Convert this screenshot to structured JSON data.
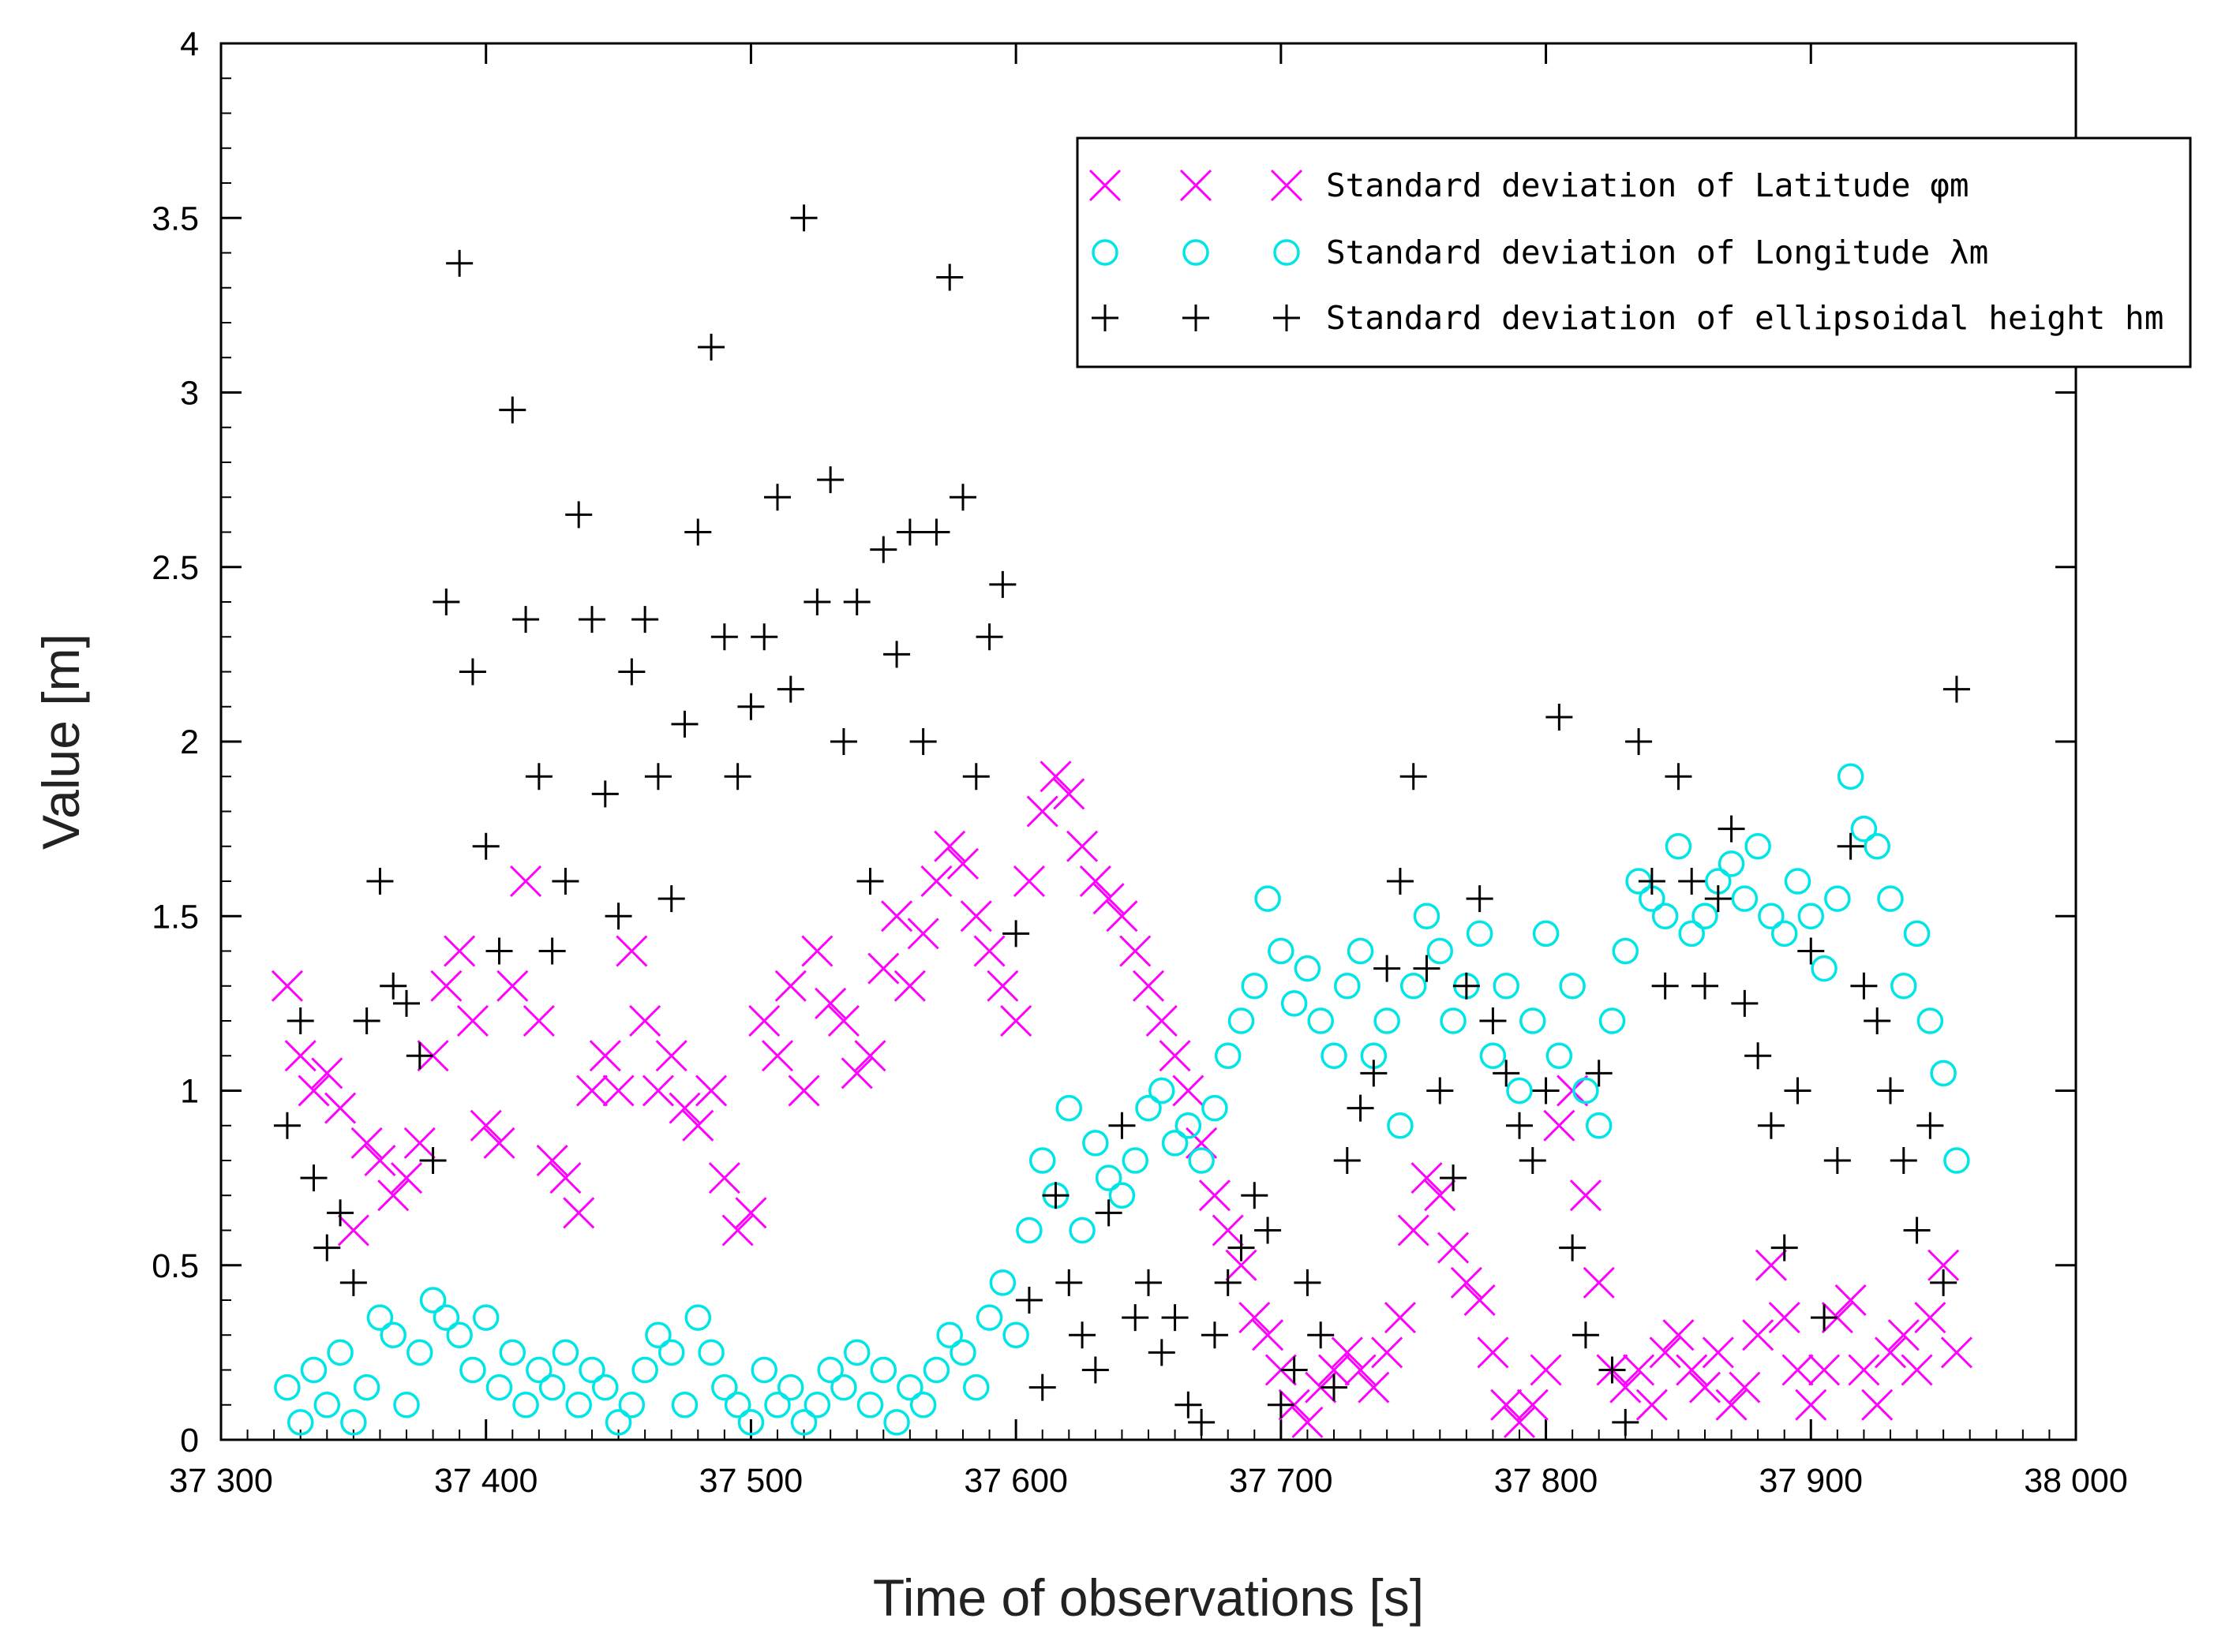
{
  "chart_data": {
    "type": "scatter",
    "title": "",
    "xlabel": "Time of observations [s]",
    "ylabel": "Value [m]",
    "xlim": [
      37300,
      38000
    ],
    "ylim": [
      0,
      4
    ],
    "x_ticks": [
      37300,
      37400,
      37500,
      37600,
      37700,
      37800,
      37900,
      38000
    ],
    "x_tick_labels": [
      "37 300",
      "37 400",
      "37 500",
      "37 600",
      "37 700",
      "37 800",
      "37 900",
      "38 000"
    ],
    "y_ticks": [
      0,
      0.5,
      1,
      1.5,
      2,
      2.5,
      3,
      3.5,
      4
    ],
    "y_tick_labels": [
      "0",
      "0.5",
      "1",
      "1.5",
      "2",
      "2.5",
      "3",
      "3.5",
      "4"
    ],
    "grid": false,
    "legend_position": "top-right",
    "series": [
      {
        "name": "Standard deviation of Latitude φm",
        "marker": "x",
        "color": "#ff00ff",
        "x": [
          37325,
          37330,
          37335,
          37340,
          37345,
          37350,
          37355,
          37360,
          37365,
          37370,
          37375,
          37380,
          37385,
          37390,
          37395,
          37400,
          37405,
          37410,
          37415,
          37420,
          37425,
          37430,
          37435,
          37440,
          37445,
          37450,
          37455,
          37460,
          37465,
          37470,
          37475,
          37480,
          37485,
          37490,
          37495,
          37500,
          37505,
          37510,
          37515,
          37520,
          37525,
          37530,
          37535,
          37540,
          37545,
          37550,
          37555,
          37560,
          37565,
          37570,
          37575,
          37580,
          37585,
          37590,
          37595,
          37600,
          37605,
          37610,
          37615,
          37620,
          37625,
          37630,
          37635,
          37640,
          37645,
          37650,
          37655,
          37660,
          37665,
          37670,
          37675,
          37680,
          37685,
          37690,
          37695,
          37700,
          37705,
          37710,
          37715,
          37720,
          37725,
          37730,
          37735,
          37740,
          37745,
          37750,
          37755,
          37760,
          37765,
          37770,
          37775,
          37780,
          37785,
          37790,
          37795,
          37800,
          37805,
          37810,
          37815,
          37820,
          37825,
          37830,
          37835,
          37840,
          37845,
          37850,
          37855,
          37860,
          37865,
          37870,
          37875,
          37880,
          37885,
          37890,
          37895,
          37900,
          37905,
          37910,
          37915,
          37920,
          37925,
          37930,
          37935,
          37940,
          37945,
          37950,
          37955
        ],
        "y": [
          1.3,
          1.1,
          1.0,
          1.05,
          0.95,
          0.6,
          0.85,
          0.8,
          0.7,
          0.75,
          0.85,
          1.1,
          1.3,
          1.4,
          1.2,
          0.9,
          0.85,
          1.3,
          1.6,
          1.2,
          0.8,
          0.75,
          0.65,
          1.0,
          1.1,
          1.0,
          1.4,
          1.2,
          1.0,
          1.1,
          0.95,
          0.9,
          1.0,
          0.75,
          0.6,
          0.65,
          1.2,
          1.1,
          1.3,
          1.0,
          1.4,
          1.25,
          1.2,
          1.05,
          1.1,
          1.35,
          1.5,
          1.3,
          1.45,
          1.6,
          1.7,
          1.65,
          1.5,
          1.4,
          1.3,
          1.2,
          1.6,
          1.8,
          1.9,
          1.85,
          1.7,
          1.6,
          1.55,
          1.5,
          1.4,
          1.3,
          1.2,
          1.1,
          1.0,
          0.85,
          0.7,
          0.6,
          0.5,
          0.35,
          0.3,
          0.2,
          0.1,
          0.05,
          0.15,
          0.2,
          0.25,
          0.2,
          0.15,
          0.25,
          0.35,
          0.6,
          0.75,
          0.7,
          0.55,
          0.45,
          0.4,
          0.25,
          0.1,
          0.05,
          0.1,
          0.2,
          0.9,
          1.0,
          0.7,
          0.45,
          0.2,
          0.15,
          0.2,
          0.1,
          0.25,
          0.3,
          0.2,
          0.15,
          0.25,
          0.1,
          0.15,
          0.3,
          0.5,
          0.35,
          0.2,
          0.1,
          0.2,
          0.35,
          0.4,
          0.2,
          0.1,
          0.25,
          0.3,
          0.2,
          0.35,
          0.5,
          0.25
        ]
      },
      {
        "name": "Standard deviation of Longitude λm",
        "marker": "o",
        "color": "#00e5e5",
        "x": [
          37325,
          37330,
          37335,
          37340,
          37345,
          37350,
          37355,
          37360,
          37365,
          37370,
          37375,
          37380,
          37385,
          37390,
          37395,
          37400,
          37405,
          37410,
          37415,
          37420,
          37425,
          37430,
          37435,
          37440,
          37445,
          37450,
          37455,
          37460,
          37465,
          37470,
          37475,
          37480,
          37485,
          37490,
          37495,
          37500,
          37505,
          37510,
          37515,
          37520,
          37525,
          37530,
          37535,
          37540,
          37545,
          37550,
          37555,
          37560,
          37565,
          37570,
          37575,
          37580,
          37585,
          37590,
          37595,
          37600,
          37605,
          37610,
          37615,
          37620,
          37625,
          37630,
          37635,
          37640,
          37645,
          37650,
          37655,
          37660,
          37665,
          37670,
          37675,
          37680,
          37685,
          37690,
          37695,
          37700,
          37705,
          37710,
          37715,
          37720,
          37725,
          37730,
          37735,
          37740,
          37745,
          37750,
          37755,
          37760,
          37765,
          37770,
          37775,
          37780,
          37785,
          37790,
          37795,
          37800,
          37805,
          37810,
          37815,
          37820,
          37825,
          37830,
          37835,
          37840,
          37845,
          37850,
          37855,
          37860,
          37865,
          37870,
          37875,
          37880,
          37885,
          37890,
          37895,
          37900,
          37905,
          37910,
          37915,
          37920,
          37925,
          37930,
          37935,
          37940,
          37945,
          37950,
          37955
        ],
        "y": [
          0.15,
          0.05,
          0.2,
          0.1,
          0.25,
          0.05,
          0.15,
          0.35,
          0.3,
          0.1,
          0.25,
          0.4,
          0.35,
          0.3,
          0.2,
          0.35,
          0.15,
          0.25,
          0.1,
          0.2,
          0.15,
          0.25,
          0.1,
          0.2,
          0.15,
          0.05,
          0.1,
          0.2,
          0.3,
          0.25,
          0.1,
          0.35,
          0.25,
          0.15,
          0.1,
          0.05,
          0.2,
          0.1,
          0.15,
          0.05,
          0.1,
          0.2,
          0.15,
          0.25,
          0.1,
          0.2,
          0.05,
          0.15,
          0.1,
          0.2,
          0.3,
          0.25,
          0.15,
          0.35,
          0.45,
          0.3,
          0.6,
          0.8,
          0.7,
          0.95,
          0.6,
          0.85,
          0.75,
          0.7,
          0.8,
          0.95,
          1.0,
          0.85,
          0.9,
          0.8,
          0.95,
          1.1,
          1.2,
          1.3,
          1.55,
          1.4,
          1.25,
          1.35,
          1.2,
          1.1,
          1.3,
          1.4,
          1.1,
          1.2,
          0.9,
          1.3,
          1.5,
          1.4,
          1.2,
          1.3,
          1.45,
          1.1,
          1.3,
          1.0,
          1.2,
          1.45,
          1.1,
          1.3,
          1.0,
          0.9,
          1.2,
          1.4,
          1.6,
          1.55,
          1.5,
          1.7,
          1.45,
          1.5,
          1.6,
          1.65,
          1.55,
          1.7,
          1.5,
          1.45,
          1.6,
          1.5,
          1.35,
          1.55,
          1.9,
          1.75,
          1.7,
          1.55,
          1.3,
          1.45,
          1.2,
          1.05,
          0.8
        ]
      },
      {
        "name": "Standard deviation of ellipsoidal height hm",
        "marker": "+",
        "color": "#000000",
        "x": [
          37325,
          37330,
          37335,
          37340,
          37345,
          37350,
          37355,
          37360,
          37365,
          37370,
          37375,
          37380,
          37385,
          37390,
          37395,
          37400,
          37405,
          37410,
          37415,
          37420,
          37425,
          37430,
          37435,
          37440,
          37445,
          37450,
          37455,
          37460,
          37465,
          37470,
          37475,
          37480,
          37485,
          37490,
          37495,
          37500,
          37505,
          37510,
          37515,
          37520,
          37525,
          37530,
          37535,
          37540,
          37545,
          37550,
          37555,
          37560,
          37565,
          37570,
          37575,
          37580,
          37585,
          37590,
          37595,
          37600,
          37605,
          37610,
          37615,
          37620,
          37625,
          37630,
          37635,
          37640,
          37645,
          37650,
          37655,
          37660,
          37665,
          37670,
          37675,
          37680,
          37685,
          37690,
          37695,
          37700,
          37705,
          37710,
          37715,
          37720,
          37725,
          37730,
          37735,
          37740,
          37745,
          37750,
          37755,
          37760,
          37765,
          37770,
          37775,
          37780,
          37785,
          37790,
          37795,
          37800,
          37805,
          37810,
          37815,
          37820,
          37825,
          37830,
          37835,
          37840,
          37845,
          37850,
          37855,
          37860,
          37865,
          37870,
          37875,
          37880,
          37885,
          37890,
          37895,
          37900,
          37905,
          37910,
          37915,
          37920,
          37925,
          37930,
          37935,
          37940,
          37945,
          37950,
          37955
        ],
        "y": [
          0.9,
          1.2,
          0.75,
          0.55,
          0.65,
          0.45,
          1.2,
          1.6,
          1.3,
          1.25,
          1.1,
          0.8,
          2.4,
          3.37,
          2.2,
          1.7,
          1.4,
          2.95,
          2.35,
          1.9,
          1.4,
          1.6,
          2.65,
          2.35,
          1.85,
          1.5,
          2.2,
          2.35,
          1.9,
          1.55,
          2.05,
          2.6,
          3.13,
          2.3,
          1.9,
          2.1,
          2.3,
          2.7,
          2.15,
          3.5,
          2.4,
          2.75,
          2.0,
          2.4,
          1.6,
          2.55,
          2.25,
          2.6,
          2.0,
          2.6,
          3.33,
          2.7,
          1.9,
          2.3,
          2.45,
          1.45,
          0.4,
          0.15,
          0.7,
          0.45,
          0.3,
          0.2,
          0.65,
          0.9,
          0.35,
          0.45,
          0.25,
          0.35,
          0.1,
          0.05,
          0.3,
          0.45,
          0.55,
          0.7,
          0.6,
          0.1,
          0.2,
          0.45,
          0.3,
          0.15,
          0.8,
          0.95,
          1.05,
          1.35,
          1.6,
          1.9,
          1.35,
          1.0,
          0.75,
          1.3,
          1.55,
          1.2,
          1.05,
          0.9,
          0.8,
          1.0,
          2.07,
          0.55,
          0.3,
          1.05,
          0.2,
          0.05,
          2.0,
          1.6,
          1.3,
          1.9,
          1.6,
          1.3,
          1.55,
          1.75,
          1.25,
          1.1,
          0.9,
          0.55,
          1.0,
          1.4,
          0.35,
          0.8,
          1.7,
          1.3,
          1.2,
          1.0,
          0.8,
          0.6,
          0.9,
          0.45,
          2.15
        ]
      }
    ]
  }
}
